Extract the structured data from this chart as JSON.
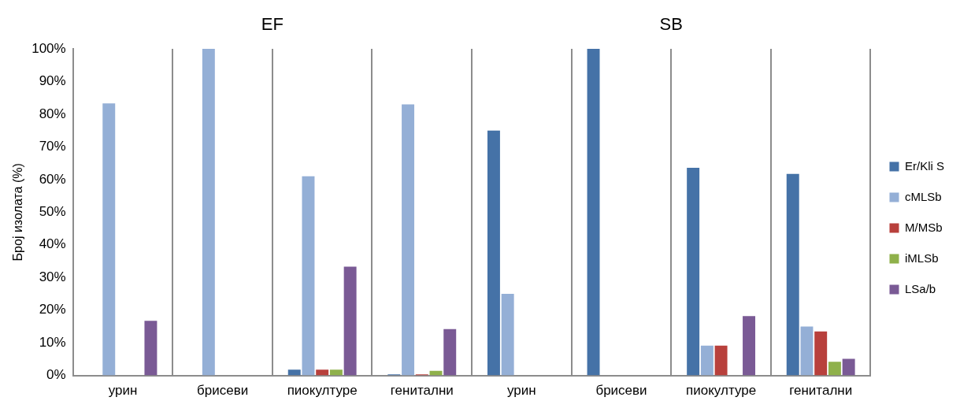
{
  "chart_data": {
    "type": "bar",
    "categories": [
      "урин",
      "брисеви",
      "пиокултуре",
      "генитални",
      "урин",
      "брисеви",
      "пиокултуре",
      "генитални"
    ],
    "ylabel": "Број изолата (%)",
    "annotations": [
      "EF",
      "SB"
    ],
    "series": [
      {
        "name": "Er/Kli S",
        "color": "#4572a7",
        "values": [
          0,
          0,
          1.8,
          0.3,
          75,
          100,
          63.6,
          61.7
        ]
      },
      {
        "name": "cMLSb",
        "color": "#94afd6",
        "values": [
          83.3,
          100,
          61,
          83,
          25,
          0,
          9.1,
          15
        ]
      },
      {
        "name": "M/MSb",
        "color": "#b8403c",
        "values": [
          0,
          0,
          1.8,
          0.3,
          0,
          0,
          9.1,
          13.5
        ]
      },
      {
        "name": "iMLSb",
        "color": "#8fb14b",
        "values": [
          0,
          0,
          1.8,
          1.4,
          0,
          0,
          0,
          4.2
        ]
      },
      {
        "name": "LSa/b",
        "color": "#7a5a95",
        "values": [
          16.7,
          0,
          33.3,
          14.2,
          0,
          0,
          18.2,
          5.1
        ]
      }
    ],
    "ylim": [
      0,
      100
    ],
    "yticks": [
      {
        "value": 0,
        "label": "0%"
      },
      {
        "value": 10,
        "label": "10%"
      },
      {
        "value": 20,
        "label": "20%"
      },
      {
        "value": 30,
        "label": "30%"
      },
      {
        "value": 40,
        "label": "40%"
      },
      {
        "value": 50,
        "label": "50%"
      },
      {
        "value": 60,
        "label": "60%"
      },
      {
        "value": 70,
        "label": "70%"
      },
      {
        "value": 80,
        "label": "80%"
      },
      {
        "value": 90,
        "label": "90%"
      },
      {
        "value": 100,
        "label": "100%"
      }
    ],
    "grid": "x",
    "legend": "right"
  }
}
